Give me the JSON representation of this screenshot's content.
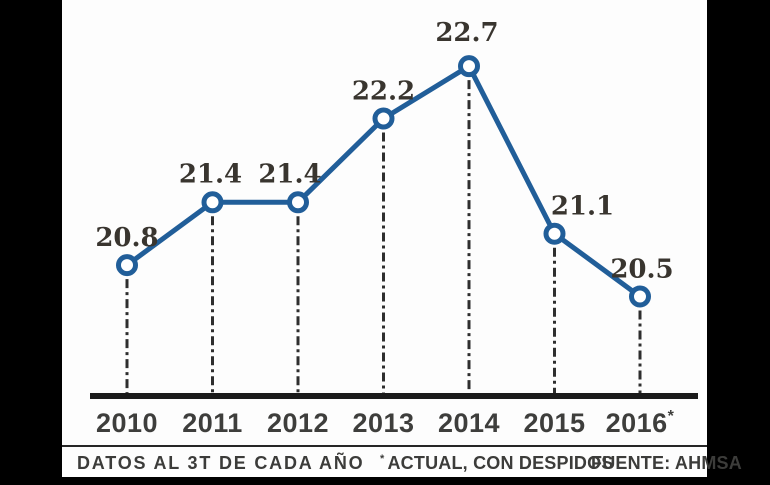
{
  "chart_data": {
    "type": "line",
    "categories": [
      "2010",
      "2011",
      "2012",
      "2013",
      "2014",
      "2015",
      "2016*"
    ],
    "series": [
      {
        "name": "AHMSA",
        "values": [
          20.8,
          21.4,
          21.4,
          22.2,
          22.7,
          21.1,
          20.5
        ]
      }
    ],
    "point_labels": [
      "20.8",
      "21.4",
      "21.4",
      "22.2",
      "22.7",
      "21.1",
      "20.5"
    ],
    "title": "",
    "xlabel": "",
    "ylabel": "",
    "ylim": [
      19.55,
      22.95
    ],
    "grid": "dashed-vertical-drop-lines",
    "legend_position": "none",
    "line_color": "#215e99",
    "marker_style": "open-circle",
    "marker_fill": "#ffffff",
    "drop_line_color": "#2e2e2e",
    "axis_color": "#1b1b1b",
    "value_label_color": "#39352f",
    "year_label_color": "#3e3e3c"
  },
  "footer": {
    "note1": "DATOS AL 3T DE CADA AÑO",
    "note2_marker": "*",
    "note2": "ACTUAL, CON DESPIDOS",
    "note3": "FUENTE: AHMSA"
  }
}
